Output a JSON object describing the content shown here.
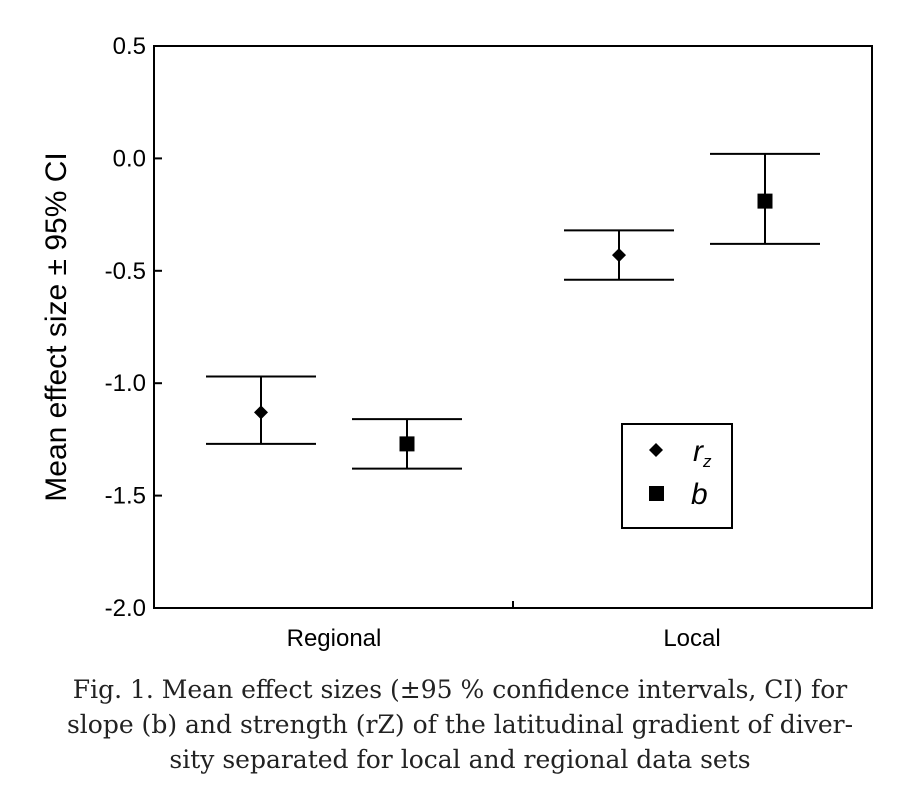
{
  "chart_data": {
    "type": "errorbar",
    "ylabel": "Mean effect size ± 95% CI",
    "xlabel": "",
    "ylim": [
      -2.0,
      0.5
    ],
    "yticks": [
      0.5,
      0.0,
      -0.5,
      -1.0,
      -1.5,
      -2.0
    ],
    "ytick_labels": [
      "0.5",
      "0.0",
      "-0.5",
      "-1.0",
      "-1.5",
      "-2.0"
    ],
    "categories": [
      "Regional",
      "Local"
    ],
    "grid": false,
    "legend_position": "lower-right",
    "series": [
      {
        "name": "r",
        "name_subscript": "z",
        "marker": "diamond",
        "mean": [
          -1.13,
          -0.43
        ],
        "lower": [
          -1.27,
          -0.54
        ],
        "upper": [
          -0.97,
          -0.32
        ]
      },
      {
        "name": "b",
        "name_subscript": "",
        "marker": "square",
        "mean": [
          -1.27,
          -0.19
        ],
        "lower": [
          -1.38,
          -0.38
        ],
        "upper": [
          -1.16,
          0.02
        ]
      }
    ]
  },
  "caption": {
    "line1": "Fig. 1. Mean effect sizes (±95 % confidence intervals, CI) for",
    "line2": "slope (b) and strength (rZ) of the latitudinal gradient of diver-",
    "line3": "sity separated for local and regional data sets"
  }
}
